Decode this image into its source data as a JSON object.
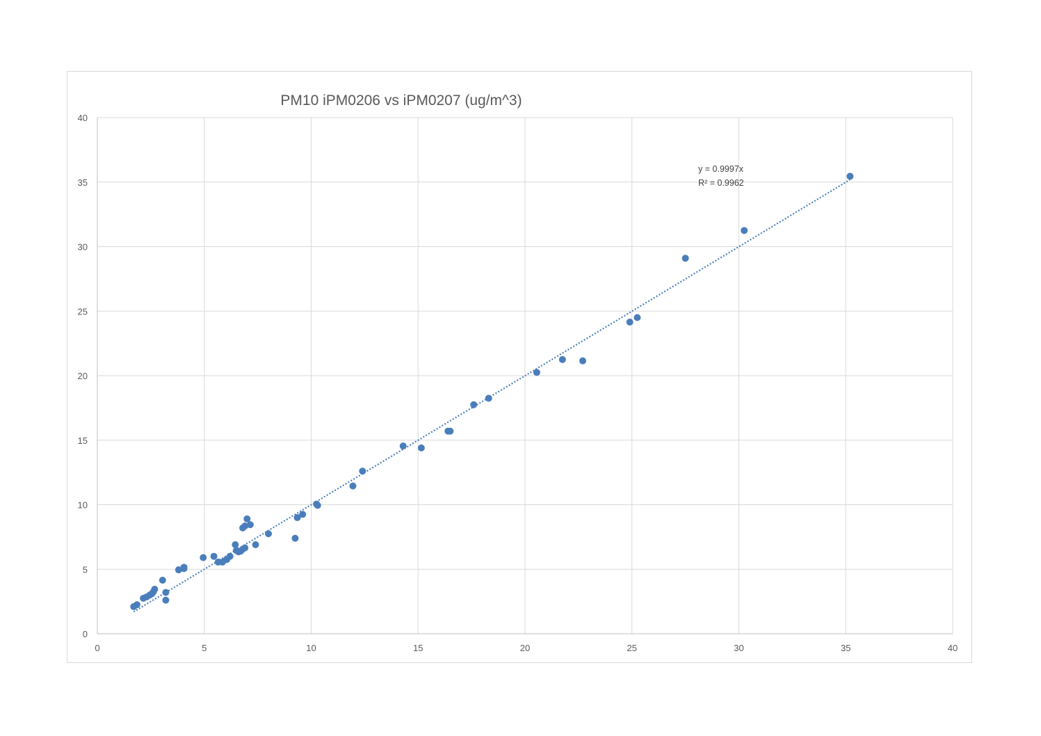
{
  "chart_data": {
    "type": "scatter",
    "title": "PM10 iPM0206 vs iPM0207 (ug/m^3)",
    "xlabel": "",
    "ylabel": "",
    "xlim": [
      0,
      40
    ],
    "ylim": [
      0,
      40
    ],
    "x_ticks": [
      "0",
      "5",
      "10",
      "15",
      "20",
      "25",
      "30",
      "35",
      "40"
    ],
    "y_ticks": [
      "0",
      "5",
      "10",
      "15",
      "20",
      "25",
      "30",
      "35",
      "40"
    ],
    "grid": true,
    "legend": "none",
    "marker_color": "#4a7ebb",
    "trendline": {
      "type": "linear-through-origin",
      "slope": 0.9997,
      "x_range": [
        1.7,
        35.2
      ],
      "style": "dotted",
      "color": "#4a7ebb",
      "equation_label": "y = 0.9997x",
      "r2_label": "R² = 0.9962",
      "label_anchor": [
        28.1,
        35.8
      ]
    },
    "series": [
      {
        "points": [
          [
            1.7,
            2.1
          ],
          [
            1.85,
            2.25
          ],
          [
            2.15,
            2.75
          ],
          [
            2.3,
            2.85
          ],
          [
            2.45,
            3.0
          ],
          [
            2.55,
            3.1
          ],
          [
            2.62,
            3.25
          ],
          [
            2.68,
            3.45
          ],
          [
            3.05,
            4.15
          ],
          [
            3.2,
            3.2
          ],
          [
            3.2,
            2.6
          ],
          [
            3.8,
            4.95
          ],
          [
            4.05,
            5.05
          ],
          [
            4.05,
            5.15
          ],
          [
            4.95,
            5.9
          ],
          [
            5.45,
            6.0
          ],
          [
            5.65,
            5.55
          ],
          [
            5.85,
            5.55
          ],
          [
            6.05,
            5.75
          ],
          [
            6.2,
            6.0
          ],
          [
            6.45,
            6.9
          ],
          [
            6.5,
            6.45
          ],
          [
            6.6,
            6.35
          ],
          [
            6.7,
            6.4
          ],
          [
            6.8,
            6.55
          ],
          [
            6.9,
            6.65
          ],
          [
            6.8,
            8.2
          ],
          [
            6.9,
            8.35
          ],
          [
            7.0,
            8.9
          ],
          [
            7.15,
            8.45
          ],
          [
            7.4,
            6.9
          ],
          [
            8.0,
            7.75
          ],
          [
            9.25,
            7.4
          ],
          [
            9.35,
            9.0
          ],
          [
            9.6,
            9.25
          ],
          [
            10.25,
            10.05
          ],
          [
            10.3,
            9.95
          ],
          [
            11.95,
            11.45
          ],
          [
            12.4,
            12.6
          ],
          [
            14.3,
            14.55
          ],
          [
            15.15,
            14.4
          ],
          [
            16.4,
            15.7
          ],
          [
            16.5,
            15.7
          ],
          [
            17.6,
            17.75
          ],
          [
            18.3,
            18.25
          ],
          [
            20.55,
            20.25
          ],
          [
            21.75,
            21.25
          ],
          [
            22.7,
            21.15
          ],
          [
            24.9,
            24.15
          ],
          [
            25.25,
            24.5
          ],
          [
            27.5,
            29.1
          ],
          [
            30.25,
            31.25
          ],
          [
            35.2,
            35.45
          ]
        ]
      }
    ]
  }
}
